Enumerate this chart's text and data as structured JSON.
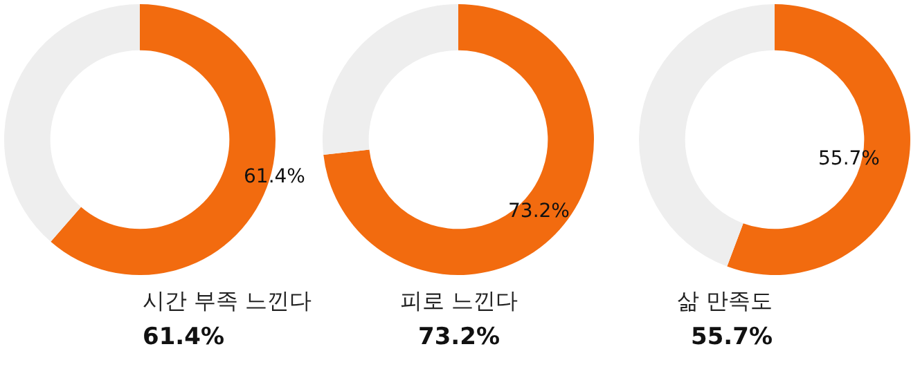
{
  "chart_data": [
    {
      "type": "donut",
      "title": "시간 부족 느낀다",
      "subtitle": "61.4%",
      "categories": [
        null,
        null
      ],
      "values": [
        61.4,
        38.6
      ],
      "colors": [
        "#f26b0f",
        "#eeeeee"
      ],
      "value_labels": [
        "61.4%",
        null
      ]
    },
    {
      "type": "donut",
      "title": "피로 느낀다",
      "subtitle": "73.2%",
      "categories": [
        null,
        null
      ],
      "values": [
        73.2,
        26.8
      ],
      "colors": [
        "#f26b0f",
        "#eeeeee"
      ],
      "value_labels": [
        "73.2%",
        null
      ]
    },
    {
      "type": "donut",
      "title": "삶 만족도",
      "subtitle": "55.7%",
      "categories": [
        null,
        null
      ],
      "values": [
        55.7,
        44.3
      ],
      "colors": [
        "#f26b0f",
        "#eeeeee"
      ],
      "value_labels": [
        "55.7%",
        null
      ]
    }
  ]
}
